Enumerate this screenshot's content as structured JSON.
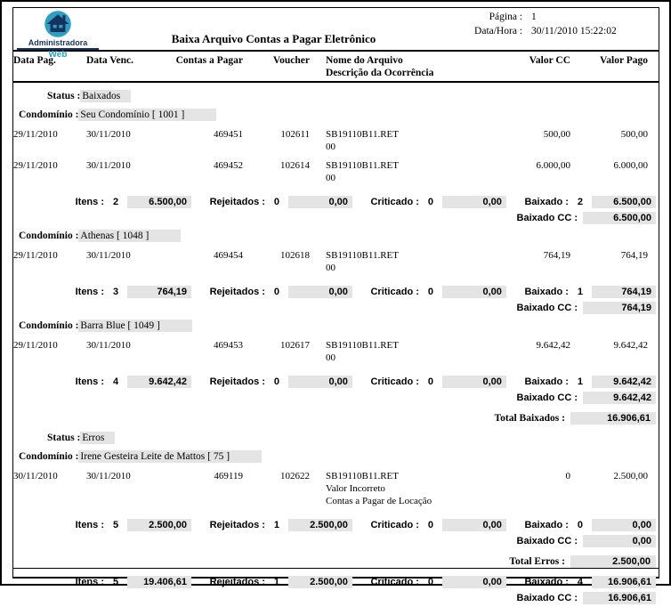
{
  "header": {
    "logo_line1": "Administradora",
    "logo_line2": "Web",
    "title": "Baixa Arquivo Contas a Pagar Eletrônico",
    "page_label": "Página :",
    "page_number": "1",
    "datetime_label": "Data/Hora :",
    "datetime_value": "30/11/2010 15:22:02"
  },
  "columns": {
    "data_pag": "Data Pag.",
    "data_venc": "Data Venc.",
    "contas_a_pagar": "Contas a Pagar",
    "voucher": "Voucher",
    "nome_arquivo": "Nome do Arquivo",
    "descricao_ocorrencia": "Descrição da Ocorrência",
    "valor_cc": "Valor CC",
    "valor_pago": "Valor Pago"
  },
  "labels": {
    "status": "Status :",
    "condominio": "Condomínio :",
    "itens": "Itens :",
    "rejeitados": "Rejeitados :",
    "criticado": "Criticado :",
    "baixado": "Baixado :",
    "baixado_cc": "Baixado CC :",
    "total_baixados": "Total Baixados :",
    "total_erros": "Total Erros :"
  },
  "status_groups": [
    {
      "status": "Baixados",
      "condominios": [
        {
          "name": "Seu Condomínio [ 1001 ]",
          "rows": [
            {
              "data_pag": "29/11/2010",
              "data_venc": "30/11/2010",
              "contas": "469451",
              "voucher": "102611",
              "arquivo": "SB19110B11.RET",
              "ocorrencia": [
                "00"
              ],
              "valor_cc": "500,00",
              "valor_pago": "500,00"
            },
            {
              "data_pag": "29/11/2010",
              "data_venc": "30/11/2010",
              "contas": "469452",
              "voucher": "102614",
              "arquivo": "SB19110B11.RET",
              "ocorrencia": [
                "00"
              ],
              "valor_cc": "6.000,00",
              "valor_pago": "6.000,00"
            }
          ],
          "summary": {
            "itens_count": "2",
            "itens_value": "6.500,00",
            "rejeitados_count": "0",
            "rejeitados_value": "0,00",
            "criticado_count": "0",
            "criticado_value": "0,00",
            "baixado_count": "2",
            "baixado_value": "6.500,00",
            "baixado_cc_value": "6.500,00"
          }
        },
        {
          "name": "Athenas [ 1048 ]",
          "rows": [
            {
              "data_pag": "29/11/2010",
              "data_venc": "30/11/2010",
              "contas": "469454",
              "voucher": "102618",
              "arquivo": "SB19110B11.RET",
              "ocorrencia": [
                "00"
              ],
              "valor_cc": "764,19",
              "valor_pago": "764,19"
            }
          ],
          "summary": {
            "itens_count": "3",
            "itens_value": "764,19",
            "rejeitados_count": "0",
            "rejeitados_value": "0,00",
            "criticado_count": "0",
            "criticado_value": "0,00",
            "baixado_count": "1",
            "baixado_value": "764,19",
            "baixado_cc_value": "764,19"
          }
        },
        {
          "name": "Barra Blue [ 1049 ]",
          "rows": [
            {
              "data_pag": "29/11/2010",
              "data_venc": "30/11/2010",
              "contas": "469453",
              "voucher": "102617",
              "arquivo": "SB19110B11.RET",
              "ocorrencia": [
                "00"
              ],
              "valor_cc": "9.642,42",
              "valor_pago": "9.642,42"
            }
          ],
          "summary": {
            "itens_count": "4",
            "itens_value": "9.642,42",
            "rejeitados_count": "0",
            "rejeitados_value": "0,00",
            "criticado_count": "0",
            "criticado_value": "0,00",
            "baixado_count": "1",
            "baixado_value": "9.642,42",
            "baixado_cc_value": "9.642,42"
          }
        }
      ],
      "total": {
        "label_key": "total_baixados",
        "value": "16.906,61"
      }
    },
    {
      "status": "Erros",
      "condominios": [
        {
          "name": "Irene Gesteira Leite de Mattos [ 75 ]",
          "rows": [
            {
              "data_pag": "30/11/2010",
              "data_venc": "30/11/2010",
              "contas": "469119",
              "voucher": "102622",
              "arquivo": "SB19110B11.RET",
              "ocorrencia": [
                "Valor Incorreto",
                "Contas a Pagar de Locação"
              ],
              "valor_cc": "0",
              "valor_pago": "2.500,00"
            }
          ],
          "summary": {
            "itens_count": "5",
            "itens_value": "2.500,00",
            "rejeitados_count": "1",
            "rejeitados_value": "2.500,00",
            "criticado_count": "0",
            "criticado_value": "0,00",
            "baixado_count": "0",
            "baixado_value": "0,00",
            "baixado_cc_value": "0,00"
          }
        }
      ],
      "total": {
        "label_key": "total_erros",
        "value": "2.500,00"
      }
    }
  ],
  "grand_total": {
    "itens_count": "5",
    "itens_value": "19.406,61",
    "rejeitados_count": "1",
    "rejeitados_value": "2.500,00",
    "criticado_count": "0",
    "criticado_value": "0,00",
    "baixado_count": "4",
    "baixado_value": "16.906,61",
    "baixado_cc_value": "16.906,61"
  },
  "colors": {
    "logo_circle": "#2b9fc6",
    "logo_dark": "#17335a",
    "box_gray": "#e4e4e4",
    "border": "#000000"
  }
}
